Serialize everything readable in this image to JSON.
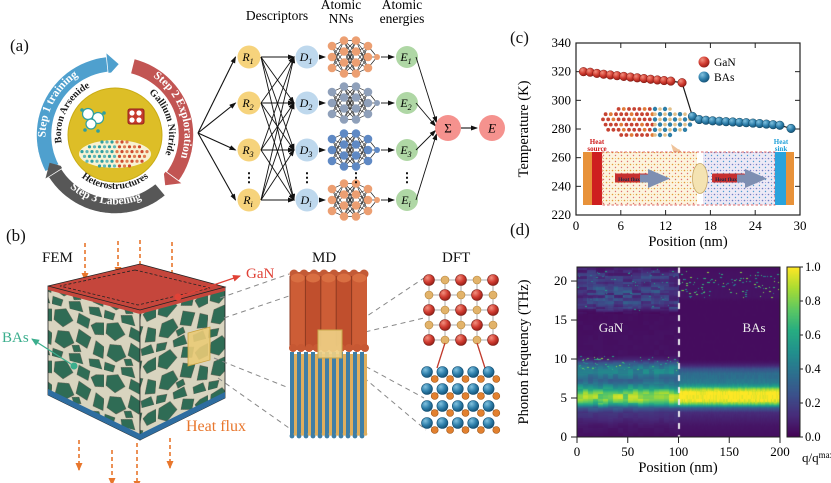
{
  "panels": {
    "a": "(a)",
    "b": "(b)",
    "c": "(c)",
    "d": "(d)"
  },
  "cycle": {
    "steps": [
      {
        "label": "Step 1 training",
        "color": "#4FA0CE"
      },
      {
        "label": "Step 2 Exploration",
        "color": "#C25553"
      },
      {
        "label": "Step 3 Labeling",
        "color": "#575757"
      }
    ],
    "ring_labels": [
      "Boron Arsenide",
      "Gallium Nitride",
      "Heterostructures"
    ],
    "center_color": "#DDBE27"
  },
  "nn": {
    "headers": [
      [
        "Descriptors"
      ],
      [
        "Atomic",
        "NNs"
      ],
      [
        "Atomic",
        "energies"
      ]
    ],
    "inputs": [
      {
        "base": "R",
        "sub": "1"
      },
      {
        "base": "R",
        "sub": "2"
      },
      {
        "base": "R",
        "sub": "3"
      },
      {
        "base": "R",
        "sub": "i"
      }
    ],
    "descriptors": [
      {
        "base": "D",
        "sub": "1"
      },
      {
        "base": "D",
        "sub": "2"
      },
      {
        "base": "D",
        "sub": "3"
      },
      {
        "base": "D",
        "sub": "i"
      }
    ],
    "energies": [
      {
        "base": "E",
        "sub": "1"
      },
      {
        "base": "E",
        "sub": "2"
      },
      {
        "base": "E",
        "sub": "3"
      },
      {
        "base": "E",
        "sub": "i"
      }
    ],
    "sum_symbol": "Σ",
    "output": "E",
    "colors": {
      "input": "#F6D37C",
      "descriptor": "#BED8ED",
      "energy": "#AFD7A5",
      "sum": "#F5928E",
      "rows": [
        "#EC9F72",
        "#8FA0BA",
        "#5F89C4",
        "#EC9F72"
      ]
    }
  },
  "fem": {
    "title": "FEM",
    "md": "MD",
    "dft": "DFT",
    "gan": "GaN",
    "bas": "BAs",
    "heat_flux": "Heat flux",
    "colors": {
      "gan_label": "#E04237",
      "bas_label": "#3BAE8D",
      "heat": "#E8762C",
      "grain": "#2F6C55",
      "matrix": "#D8D4BF",
      "top": "#C5463C",
      "bottom": "#2E6DA0"
    }
  },
  "inset": {
    "heat_source": [
      "Heat",
      "source"
    ],
    "heat_sink": [
      "Heat",
      "sink"
    ],
    "fixed_left": "Fixed",
    "fixed_right": "Fixed",
    "heat_flux_left": "Heat flux",
    "heat_flux_right": "Heat flux"
  },
  "chart_data": [
    {
      "type": "scatter",
      "xlabel": "Position (nm)",
      "ylabel": "Temperature (K)",
      "xlim": [
        0,
        30
      ],
      "ylim": [
        220,
        340
      ],
      "xticks": [
        0,
        6,
        12,
        18,
        24,
        30
      ],
      "yticks": [
        220,
        240,
        260,
        280,
        300,
        320,
        340
      ],
      "legend": {
        "position": "top-right"
      },
      "line_color": "#1a1a1a",
      "series": [
        {
          "name": "GaN",
          "color": "#D03B30",
          "x": [
            1,
            1.9,
            2.8,
            3.7,
            4.6,
            5.5,
            6.4,
            7.3,
            8.2,
            9.1,
            10,
            10.9,
            11.8,
            12.7,
            14.2
          ],
          "y": [
            320,
            319.6,
            318.8,
            318.2,
            317.7,
            317.2,
            316.7,
            316.2,
            315.7,
            315.2,
            314.7,
            314.2,
            313.8,
            313.4,
            312.3
          ]
        },
        {
          "name": "BAs",
          "color": "#2E7FAB",
          "x": [
            15.6,
            16.5,
            17.4,
            18.3,
            19.2,
            20.1,
            21,
            21.9,
            22.8,
            23.7,
            24.6,
            25.5,
            26.4,
            27.3,
            28.8
          ],
          "y": [
            288.8,
            286.6,
            286.1,
            285.7,
            285.4,
            285.1,
            284.9,
            284.6,
            284.4,
            284.1,
            283.8,
            283.4,
            283,
            282.6,
            280.4
          ]
        }
      ]
    },
    {
      "type": "heatmap",
      "xlabel": "Position (nm)",
      "ylabel": "Phonon frequency (THz)",
      "xlim": [
        0,
        200
      ],
      "ylim": [
        0,
        21.8
      ],
      "xticks": [
        0,
        50,
        100,
        150,
        200
      ],
      "yticks": [
        0,
        5,
        10,
        15,
        20
      ],
      "interface_x": 100,
      "regions": [
        {
          "label": "GaN",
          "x_range": [
            0,
            100
          ]
        },
        {
          "label": "BAs",
          "x_range": [
            100,
            200
          ]
        }
      ],
      "colorbar": {
        "label": "q/q",
        "label_sup": "max",
        "colormap": "viridis",
        "ticks": [
          "1.0",
          "0.8",
          "0.6",
          "0.4",
          "0.2",
          "0.0"
        ]
      },
      "profiles": {
        "GaN": [
          [
            0,
            0.04
          ],
          [
            1.5,
            0.07
          ],
          [
            2.5,
            0.13
          ],
          [
            3.2,
            0.16
          ],
          [
            3.8,
            0.3
          ],
          [
            4.3,
            0.65
          ],
          [
            4.8,
            0.82
          ],
          [
            5.3,
            0.85
          ],
          [
            5.8,
            0.75
          ],
          [
            6.3,
            0.55
          ],
          [
            6.8,
            0.42
          ],
          [
            7.3,
            0.33
          ],
          [
            7.8,
            0.38
          ],
          [
            8.3,
            0.46
          ],
          [
            9,
            0.42
          ],
          [
            9.5,
            0.28
          ],
          [
            10,
            0.1
          ],
          [
            10.5,
            0.05
          ],
          [
            16,
            0.04
          ],
          [
            16.6,
            0.16
          ],
          [
            17.2,
            0.24
          ],
          [
            18,
            0.18
          ],
          [
            18.6,
            0.22
          ],
          [
            19.4,
            0.18
          ],
          [
            20,
            0.13
          ],
          [
            20.7,
            0.17
          ],
          [
            21.8,
            0.08
          ]
        ],
        "BAs": [
          [
            0,
            0.04
          ],
          [
            1.5,
            0.06
          ],
          [
            2.5,
            0.1
          ],
          [
            3.2,
            0.13
          ],
          [
            3.8,
            0.3
          ],
          [
            4.2,
            0.7
          ],
          [
            4.6,
            0.95
          ],
          [
            5,
            1
          ],
          [
            5.8,
            1
          ],
          [
            6.2,
            0.85
          ],
          [
            6.6,
            0.55
          ],
          [
            7,
            0.42
          ],
          [
            7.6,
            0.38
          ],
          [
            8.2,
            0.36
          ],
          [
            8.8,
            0.25
          ],
          [
            9.2,
            0.12
          ],
          [
            9.6,
            0.06
          ],
          [
            10,
            0.035
          ],
          [
            17.5,
            0.035
          ],
          [
            18,
            0.055
          ],
          [
            21,
            0.05
          ],
          [
            21.8,
            0.04
          ]
        ]
      },
      "speckles": [
        {
          "region": "GaN",
          "f_range": [
            8.6,
            10.4
          ],
          "count": 60,
          "intensity": [
            0.45,
            0.85
          ]
        },
        {
          "region": "GaN",
          "f_range": [
            16.2,
            21.6
          ],
          "count": 50,
          "intensity": [
            0.3,
            0.6
          ]
        },
        {
          "region": "BAs",
          "f_range": [
            17.9,
            21.3
          ],
          "count": 110,
          "intensity": [
            0.35,
            0.85
          ]
        }
      ]
    }
  ]
}
